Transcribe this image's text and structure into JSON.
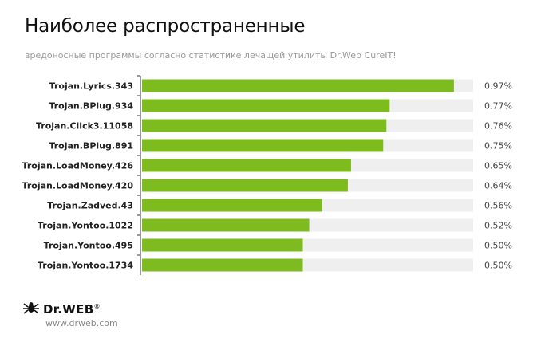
{
  "header": {
    "title": "Наиболее распространенные",
    "subtitle": "вредоносные программы согласно статистике лечащей утилиты Dr.Web CureIT!"
  },
  "chart_data": {
    "type": "bar",
    "orientation": "horizontal",
    "categories": [
      "Trojan.Lyrics.343",
      "Trojan.BPlug.934",
      "Trojan.Click3.11058",
      "Trojan.BPlug.891",
      "Trojan.LoadMoney.426",
      "Trojan.LoadMoney.420",
      "Trojan.Zadved.43",
      "Trojan.Yontoo.1022",
      "Trojan.Yontoo.495",
      "Trojan.Yontoo.1734"
    ],
    "values": [
      0.97,
      0.77,
      0.76,
      0.75,
      0.65,
      0.64,
      0.56,
      0.52,
      0.5,
      0.5
    ],
    "value_labels": [
      "0.97%",
      "0.77%",
      "0.76%",
      "0.75%",
      "0.65%",
      "0.64%",
      "0.56%",
      "0.52%",
      "0.50%",
      "0.50%"
    ],
    "xlim": [
      0,
      1.0
    ],
    "grid": false,
    "colors": {
      "bar": "#7dbb1f",
      "track": "#efefef",
      "axis": "#333333"
    }
  },
  "footer": {
    "logo_text": "Dr.WEB",
    "logo_icon": "spider-icon",
    "website": "www.drweb.com"
  }
}
